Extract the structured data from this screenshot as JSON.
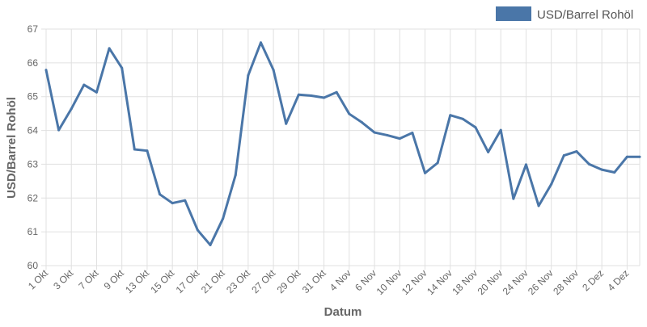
{
  "chart_data": {
    "type": "line",
    "title": "",
    "xlabel": "Datum",
    "ylabel": "USD/Barrel Rohöl",
    "ylim": [
      60,
      67
    ],
    "yticks": [
      60,
      61,
      62,
      63,
      64,
      65,
      66,
      67
    ],
    "grid": true,
    "legend_position": "top-right",
    "x_tick_labels": [
      "1 Okt",
      "",
      "3 Okt",
      "",
      "7 Okt",
      "",
      "9 Okt",
      "",
      "13 Okt",
      "",
      "15 Okt",
      "",
      "17 Okt",
      "",
      "21 Okt",
      "",
      "23 Okt",
      "",
      "27 Okt",
      "",
      "29 Okt",
      "",
      "31 Okt",
      "",
      "4 Nov",
      "",
      "6 Nov",
      "",
      "10 Nov",
      "",
      "12 Nov",
      "",
      "14 Nov",
      "",
      "18 Nov",
      "",
      "20 Nov",
      "",
      "24 Nov",
      "",
      "26 Nov",
      "",
      "28 Nov",
      "",
      "2 Dez",
      "",
      "4 Dez",
      ""
    ],
    "series": [
      {
        "name": "USD/Barrel Rohöl",
        "color": "#4a76a8",
        "values": [
          65.79,
          64.01,
          64.64,
          65.35,
          65.13,
          66.43,
          65.85,
          63.44,
          63.4,
          62.11,
          61.85,
          61.93,
          61.05,
          60.61,
          61.39,
          62.68,
          65.63,
          66.6,
          65.79,
          64.2,
          65.06,
          65.03,
          64.97,
          65.13,
          64.49,
          64.24,
          63.94,
          63.86,
          63.76,
          63.93,
          62.74,
          63.04,
          64.45,
          64.34,
          64.09,
          63.36,
          64.01,
          61.98,
          62.99,
          61.77,
          62.41,
          63.26,
          63.38,
          63.0,
          62.84,
          62.76,
          63.22,
          63.22
        ]
      }
    ]
  }
}
